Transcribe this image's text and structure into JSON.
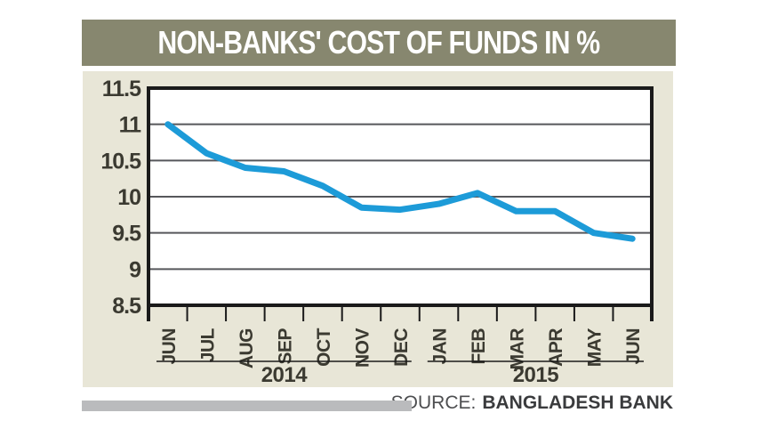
{
  "title": "NON-BANKS' COST OF FUNDS IN %",
  "source": {
    "prefix": "SOURCE:",
    "name": "BANGLADESH BANK"
  },
  "colors": {
    "title_bar_bg": "#87876F",
    "title_text": "#FFFFFF",
    "panel_bg": "#E8E6D7",
    "plot_bg": "#FFFFFF",
    "grid": "#56575B",
    "axis": "#1A1A1A",
    "label_text": "#3B3A31",
    "line": "#1D9BD8",
    "source_prefix_text": "#4D4E50",
    "source_name_text": "#3A3B3D",
    "bottom_bar": "#BABBBD"
  },
  "chart_data": {
    "type": "line",
    "title": "NON-BANKS' COST OF FUNDS IN %",
    "categories": [
      "JUN",
      "JUL",
      "AUG",
      "SEP",
      "OCT",
      "NOV",
      "DEC",
      "JAN",
      "FEB",
      "MAR",
      "APR",
      "MAY",
      "JUN"
    ],
    "series": [
      {
        "name": "Non-banks' cost of funds (%)",
        "values": [
          11.0,
          10.6,
          10.4,
          10.35,
          10.15,
          9.85,
          9.82,
          9.9,
          10.05,
          9.8,
          9.8,
          9.5,
          9.42
        ]
      }
    ],
    "year_groups": [
      {
        "label": "2014",
        "from": 0,
        "to": 6
      },
      {
        "label": "2015",
        "from": 7,
        "to": 12
      }
    ],
    "xlabel": "",
    "ylabel": "",
    "ylim": [
      8.5,
      11.5
    ],
    "ytick_labels": [
      "11.5",
      "11",
      "10.5",
      "10",
      "9.5",
      "9",
      "8.5"
    ],
    "grid": true,
    "legend": "none"
  }
}
